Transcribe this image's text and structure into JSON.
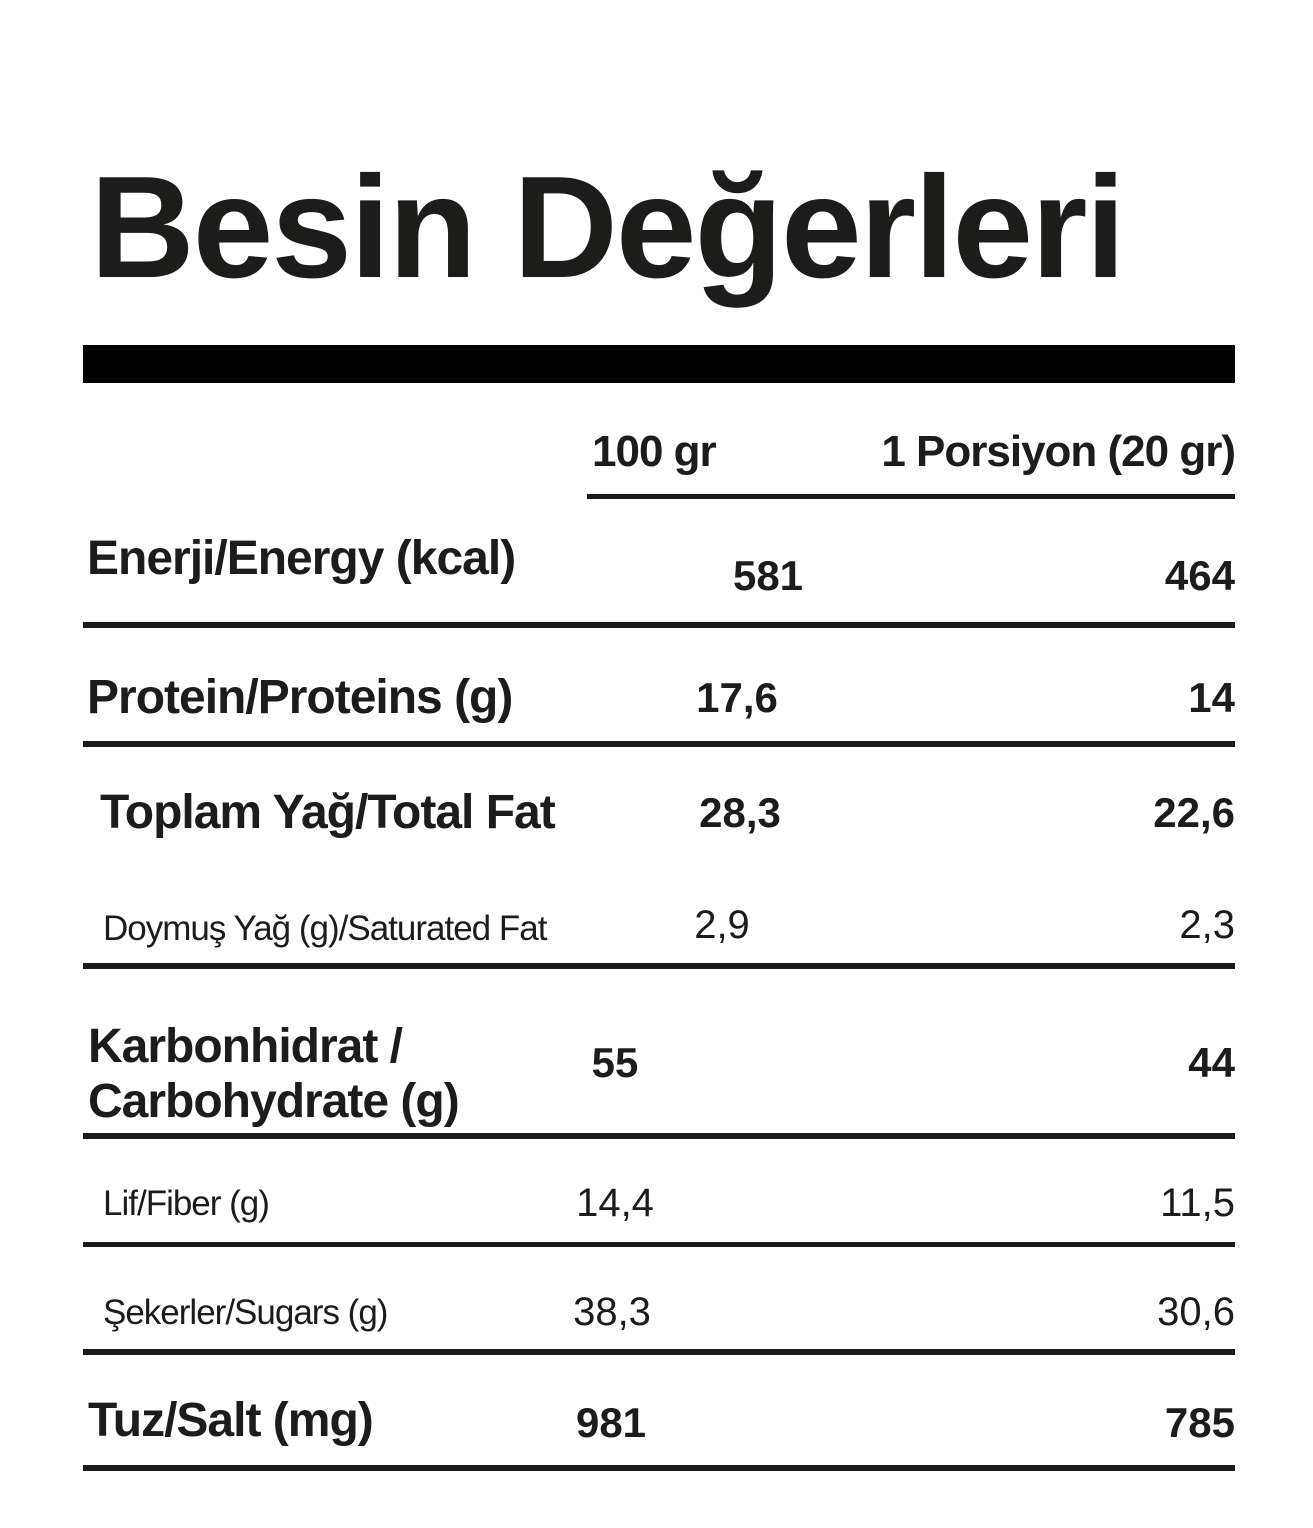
{
  "title": "Besin Değerleri",
  "table": {
    "column_headers": {
      "per_100g": "100 gr",
      "per_portion": "1 Porsiyon (20 gr)"
    },
    "rows": [
      {
        "id": "energy",
        "label": "Enerji/Energy (kcal)",
        "per_100g": "581",
        "per_portion": "464",
        "emphasis": "bold"
      },
      {
        "id": "protein",
        "label": "Protein/Proteins (g)",
        "per_100g": "17,6",
        "per_portion": "14",
        "emphasis": "bold"
      },
      {
        "id": "total-fat",
        "label": "Toplam Yağ/Total Fat",
        "per_100g": "28,3",
        "per_portion": "22,6",
        "emphasis": "bold"
      },
      {
        "id": "saturated-fat",
        "label": "Doymuş Yağ (g)/Saturated Fat",
        "per_100g": "2,9",
        "per_portion": "2,3",
        "emphasis": "regular"
      },
      {
        "id": "carbohydrate",
        "label": "Karbonhidrat /",
        "label_line2": "Carbohydrate (g)",
        "per_100g": "55",
        "per_portion": "44",
        "emphasis": "bold"
      },
      {
        "id": "fiber",
        "label": "Lif/Fiber (g)",
        "per_100g": "14,4",
        "per_portion": "11,5",
        "emphasis": "regular"
      },
      {
        "id": "sugars",
        "label": "Şekerler/Sugars (g)",
        "per_100g": "38,3",
        "per_portion": "30,6",
        "emphasis": "regular"
      },
      {
        "id": "salt",
        "label": "Tuz/Salt (mg)",
        "per_100g": "981",
        "per_portion": "785",
        "emphasis": "bold"
      }
    ]
  },
  "colors": {
    "text": "#1c1c1b",
    "header_bar": "#000000",
    "rule_lines": "#1b1b1b"
  }
}
